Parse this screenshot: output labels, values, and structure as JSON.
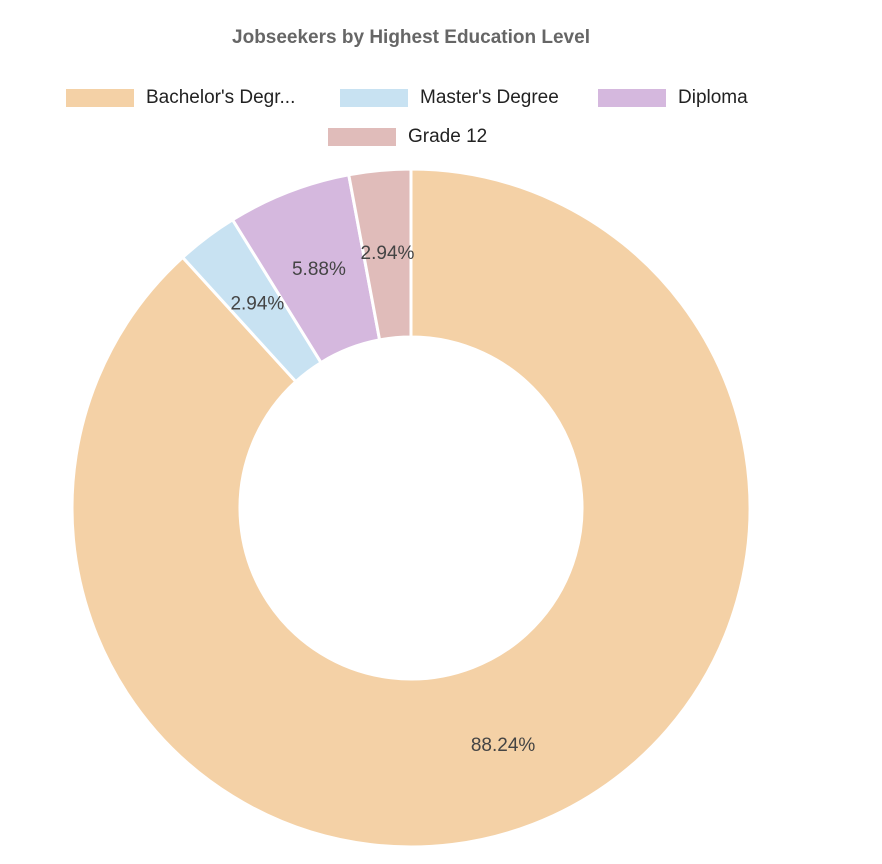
{
  "chart_data": {
    "type": "doughnut",
    "title": "Jobseekers by Highest Education Level",
    "categories": [
      "Bachelor's Degr...",
      "Master's Degree",
      "Diploma",
      "Grade 12"
    ],
    "values": [
      88.24,
      2.94,
      5.88,
      2.94
    ],
    "value_labels": [
      "88.24%",
      "2.94%",
      "5.88%",
      "2.94%"
    ],
    "colors": [
      "#f4d1a6",
      "#c8e2f2",
      "#d5b8de",
      "#e0bcba"
    ]
  }
}
